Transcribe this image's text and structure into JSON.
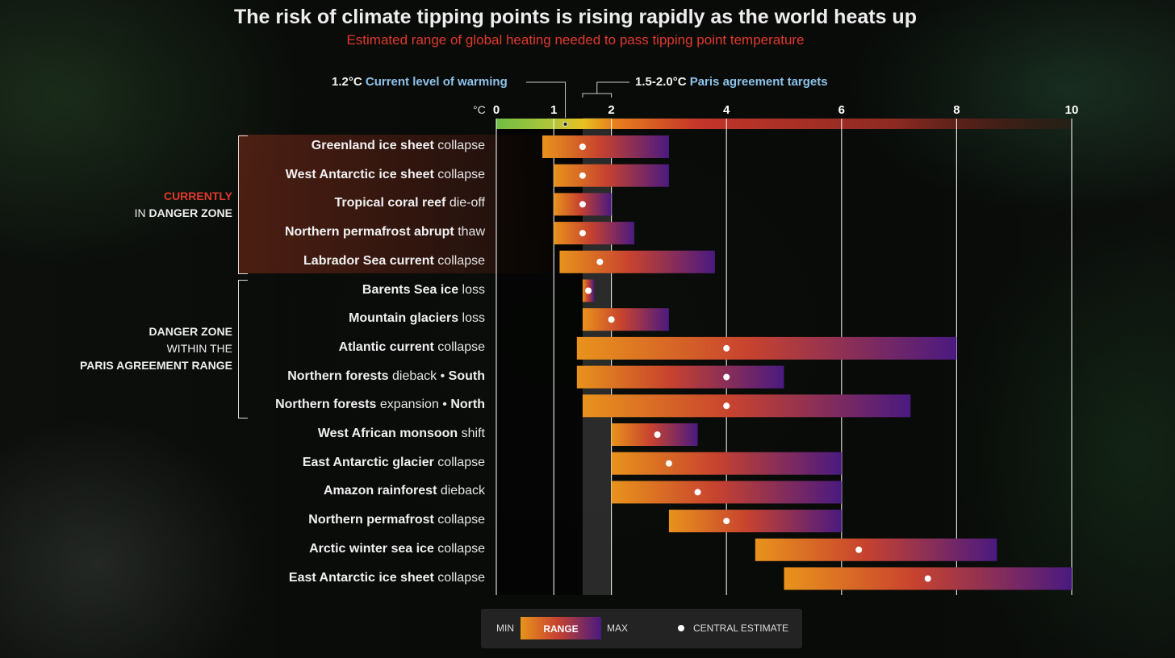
{
  "chart_data": {
    "type": "range-bar",
    "title": "The risk of climate tipping points is rising rapidly as the world heats up",
    "subtitle": "Estimated range of global heating needed to pass tipping point temperature",
    "unit": "°C",
    "xlim": [
      0,
      10
    ],
    "x_ticks": [
      "0",
      "1",
      "2",
      "4",
      "6",
      "8",
      "10"
    ],
    "current_warming": {
      "value_label": "1.2°C",
      "label": "Current level of warming",
      "value": 1.2
    },
    "paris_targets": {
      "value_label": "1.5-2.0°C",
      "label": "Paris agreement targets",
      "range": [
        1.5,
        2.0
      ]
    },
    "groups": [
      {
        "line1_red": "CURRENTLY",
        "line2_plain": "IN ",
        "line2_bold": "DANGER ZONE",
        "rows": [
          0,
          4
        ]
      },
      {
        "line1": "DANGER ZONE",
        "line2": "WITHIN THE",
        "line3": "PARIS AGREEMENT RANGE",
        "rows": [
          5,
          9
        ]
      }
    ],
    "items": [
      {
        "bold": "Greenland ice sheet",
        "suffix": " collapse",
        "min": 0.8,
        "central": 1.5,
        "max": 3.0
      },
      {
        "bold": "West Antarctic ice sheet",
        "suffix": " collapse",
        "min": 1.0,
        "central": 1.5,
        "max": 3.0
      },
      {
        "bold": "Tropical coral reef",
        "suffix": " die-off",
        "min": 1.0,
        "central": 1.5,
        "max": 2.0
      },
      {
        "bold": "Northern permafrost abrupt",
        "suffix": " thaw",
        "min": 1.0,
        "central": 1.5,
        "max": 2.4
      },
      {
        "bold": "Labrador Sea current",
        "suffix": " collapse",
        "min": 1.1,
        "central": 1.8,
        "max": 3.8
      },
      {
        "bold": "Barents Sea ice",
        "suffix": " loss",
        "min": 1.5,
        "central": 1.6,
        "max": 1.7
      },
      {
        "bold": "Mountain glaciers",
        "suffix": " loss",
        "min": 1.5,
        "central": 2.0,
        "max": 3.0
      },
      {
        "bold": "Atlantic current",
        "suffix": " collapse",
        "min": 1.4,
        "central": 4.0,
        "max": 8.0
      },
      {
        "bold": "Northern forests",
        "suffix": " dieback • ",
        "bold2": "South",
        "min": 1.4,
        "central": 4.0,
        "max": 5.0
      },
      {
        "bold": "Northern forests",
        "suffix": " expansion • ",
        "bold2": "North",
        "min": 1.5,
        "central": 4.0,
        "max": 7.2
      },
      {
        "bold": "West African monsoon",
        "suffix": " shift",
        "min": 2.0,
        "central": 2.8,
        "max": 3.5
      },
      {
        "bold": "East Antarctic glacier",
        "suffix": " collapse",
        "min": 2.0,
        "central": 3.0,
        "max": 6.0
      },
      {
        "bold": "Amazon rainforest",
        "suffix": " dieback",
        "min": 2.0,
        "central": 3.5,
        "max": 6.0
      },
      {
        "bold": "Northern permafrost",
        "suffix": " collapse",
        "min": 3.0,
        "central": 4.0,
        "max": 6.0
      },
      {
        "bold": "Arctic winter sea ice",
        "suffix": " collapse",
        "min": 4.5,
        "central": 6.3,
        "max": 8.7
      },
      {
        "bold": "East Antarctic ice sheet",
        "suffix": " collapse",
        "min": 5.0,
        "central": 7.5,
        "max": 10.0
      }
    ],
    "legend": {
      "min": "MIN",
      "range": "RANGE",
      "max": "MAX",
      "central": "CENTRAL ESTIMATE"
    },
    "colors": {
      "min": "#e8931c",
      "mid": "#c8432f",
      "max": "#4a1a80",
      "subtitle": "#e0392c",
      "annotation": "#8ec3ea"
    }
  }
}
